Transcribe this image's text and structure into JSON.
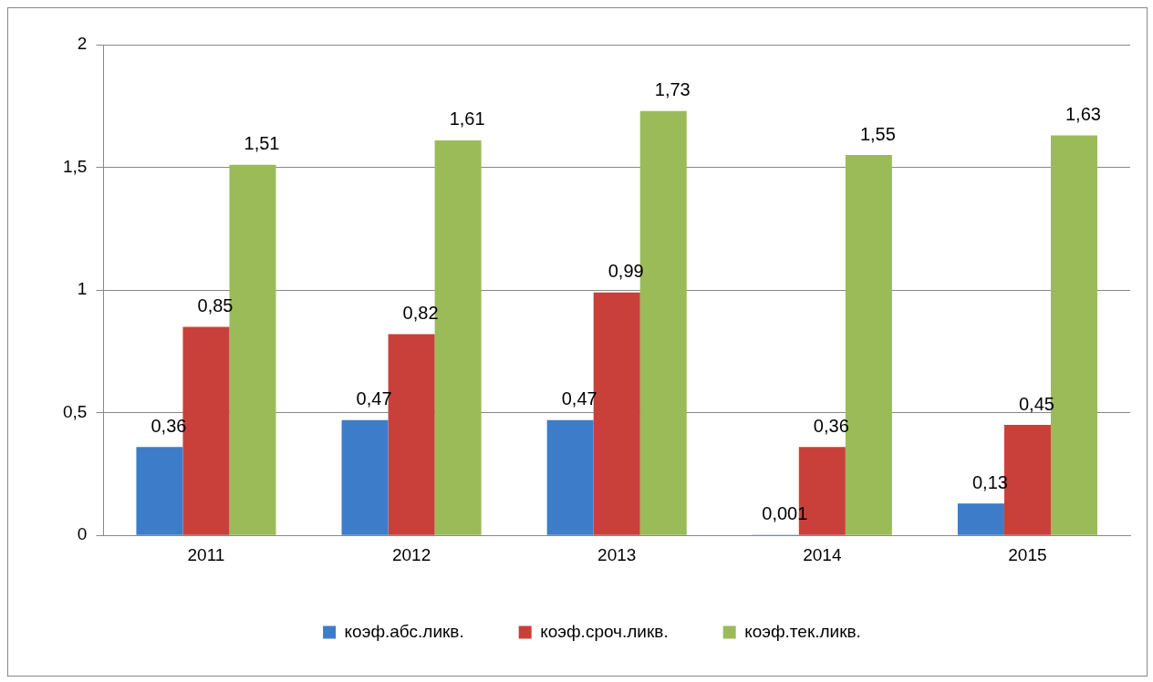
{
  "chart_data": {
    "type": "bar",
    "categories": [
      "2011",
      "2012",
      "2013",
      "2014",
      "2015"
    ],
    "series": [
      {
        "name": "коэф.абс.ликв.",
        "color": "#3d7cc9",
        "values": [
          0.36,
          0.47,
          0.47,
          0.001,
          0.13
        ],
        "value_labels": [
          "0,36",
          "0,47",
          "0,47",
          "0,001",
          "0,13"
        ]
      },
      {
        "name": "коэф.сроч.ликв.",
        "color": "#c9403a",
        "values": [
          0.85,
          0.82,
          0.99,
          0.36,
          0.45
        ],
        "value_labels": [
          "0,85",
          "0,82",
          "0,99",
          "0,36",
          "0,45"
        ]
      },
      {
        "name": "коэф.тек.ликв.",
        "color": "#9bbb59",
        "values": [
          1.51,
          1.61,
          1.73,
          1.55,
          1.63
        ],
        "value_labels": [
          "1,51",
          "1,61",
          "1,73",
          "1,55",
          "1,63"
        ]
      }
    ],
    "ylim": [
      0,
      2
    ],
    "yticks": [
      0,
      {
        "value": 0.5,
        "label": "0,5"
      },
      1,
      {
        "value": 1.5,
        "label": "1,5"
      },
      2
    ],
    "grid": "y",
    "legend": "bottom"
  }
}
